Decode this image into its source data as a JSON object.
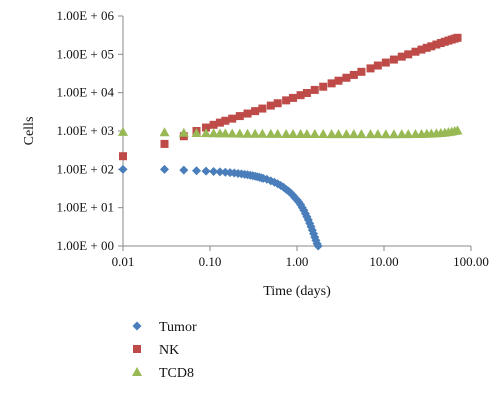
{
  "chart_data": {
    "type": "scatter",
    "x_scale": "log",
    "y_scale": "log",
    "xlabel": "Time (days)",
    "ylabel": "Cells",
    "xlim": [
      0.01,
      100
    ],
    "ylim": [
      1,
      1000000
    ],
    "x_ticks": [
      0.01,
      0.1,
      1,
      10,
      100
    ],
    "x_tick_labels": [
      "0.01",
      "0.10",
      "1.00",
      "10.00",
      "100.00"
    ],
    "y_ticks": [
      1,
      10,
      100,
      1000,
      10000,
      100000,
      1000000
    ],
    "y_tick_labels": [
      "1.00E + 00",
      "1.00E + 01",
      "1.00E + 02",
      "1.00E + 03",
      "1.00E + 04",
      "1.00E + 05",
      "1.00E + 06"
    ],
    "grid": false,
    "legend_position": "bottom",
    "series": [
      {
        "name": "Tumor",
        "marker": "diamond",
        "color": "#4a7ebb",
        "points": [
          [
            0.01,
            100
          ],
          [
            0.03,
            100
          ],
          [
            0.05,
            95
          ],
          [
            0.07,
            92
          ],
          [
            0.09,
            90
          ],
          [
            0.11,
            88
          ],
          [
            0.13,
            86
          ],
          [
            0.15,
            84
          ],
          [
            0.17,
            82
          ],
          [
            0.19,
            80
          ],
          [
            0.21,
            78
          ],
          [
            0.23,
            76
          ],
          [
            0.25,
            74
          ],
          [
            0.27,
            72
          ],
          [
            0.29,
            70
          ],
          [
            0.31,
            68
          ],
          [
            0.33,
            66
          ],
          [
            0.35,
            64
          ],
          [
            0.37,
            62
          ],
          [
            0.39,
            60
          ],
          [
            0.41,
            58
          ],
          [
            0.45,
            55
          ],
          [
            0.5,
            50
          ],
          [
            0.55,
            46
          ],
          [
            0.6,
            42
          ],
          [
            0.65,
            38
          ],
          [
            0.7,
            34
          ],
          [
            0.75,
            30
          ],
          [
            0.8,
            27
          ],
          [
            0.85,
            24
          ],
          [
            0.9,
            21
          ],
          [
            0.95,
            18
          ],
          [
            1.0,
            16
          ],
          [
            1.05,
            14
          ],
          [
            1.1,
            12
          ],
          [
            1.15,
            10
          ],
          [
            1.2,
            8.5
          ],
          [
            1.25,
            7
          ],
          [
            1.3,
            5.8
          ],
          [
            1.35,
            4.8
          ],
          [
            1.4,
            3.9
          ],
          [
            1.45,
            3.2
          ],
          [
            1.5,
            2.6
          ],
          [
            1.55,
            2.1
          ],
          [
            1.6,
            1.7
          ],
          [
            1.65,
            1.4
          ],
          [
            1.7,
            1.15
          ],
          [
            1.75,
            1.0
          ]
        ]
      },
      {
        "name": "NK",
        "marker": "square",
        "color": "#be4b48",
        "points": [
          [
            0.01,
            220
          ],
          [
            0.03,
            460
          ],
          [
            0.05,
            730
          ],
          [
            0.07,
            1000
          ],
          [
            0.09,
            1230
          ],
          [
            0.11,
            1450
          ],
          [
            0.13,
            1650
          ],
          [
            0.15,
            1850
          ],
          [
            0.18,
            2100
          ],
          [
            0.22,
            2450
          ],
          [
            0.27,
            2850
          ],
          [
            0.33,
            3300
          ],
          [
            0.4,
            3850
          ],
          [
            0.5,
            4600
          ],
          [
            0.6,
            5300
          ],
          [
            0.75,
            6300
          ],
          [
            0.9,
            7300
          ],
          [
            1.1,
            8600
          ],
          [
            1.3,
            9800
          ],
          [
            1.6,
            11800
          ],
          [
            2.0,
            14300
          ],
          [
            2.5,
            17500
          ],
          [
            3.0,
            20500
          ],
          [
            3.7,
            24500
          ],
          [
            4.5,
            29000
          ],
          [
            5.5,
            35000
          ],
          [
            7.0,
            43000
          ],
          [
            8.5,
            51000
          ],
          [
            10.5,
            61000
          ],
          [
            13,
            73000
          ],
          [
            16,
            87000
          ],
          [
            19,
            100000
          ],
          [
            23,
            117000
          ],
          [
            27,
            133000
          ],
          [
            31,
            148000
          ],
          [
            35,
            162000
          ],
          [
            40,
            180000
          ],
          [
            45,
            197000
          ],
          [
            50,
            213000
          ],
          [
            55,
            228000
          ],
          [
            60,
            243000
          ],
          [
            65,
            257000
          ],
          [
            70,
            270000
          ]
        ]
      },
      {
        "name": "TCD8",
        "marker": "triangle",
        "color": "#98b954",
        "points": [
          [
            0.01,
            950
          ],
          [
            0.03,
            930
          ],
          [
            0.05,
            900
          ],
          [
            0.07,
            890
          ],
          [
            0.09,
            880
          ],
          [
            0.11,
            875
          ],
          [
            0.13,
            870
          ],
          [
            0.15,
            865
          ],
          [
            0.18,
            860
          ],
          [
            0.22,
            855
          ],
          [
            0.27,
            850
          ],
          [
            0.33,
            848
          ],
          [
            0.4,
            845
          ],
          [
            0.5,
            842
          ],
          [
            0.6,
            840
          ],
          [
            0.75,
            838
          ],
          [
            0.9,
            836
          ],
          [
            1.1,
            835
          ],
          [
            1.3,
            834
          ],
          [
            1.6,
            833
          ],
          [
            2.0,
            832
          ],
          [
            2.5,
            831
          ],
          [
            3.0,
            830
          ],
          [
            3.7,
            829
          ],
          [
            4.5,
            828
          ],
          [
            5.5,
            827
          ],
          [
            7.0,
            826
          ],
          [
            8.5,
            826
          ],
          [
            10.5,
            825
          ],
          [
            13,
            825
          ],
          [
            16,
            826
          ],
          [
            19,
            828
          ],
          [
            23,
            832
          ],
          [
            27,
            838
          ],
          [
            31,
            846
          ],
          [
            35,
            856
          ],
          [
            40,
            870
          ],
          [
            45,
            888
          ],
          [
            50,
            910
          ],
          [
            55,
            935
          ],
          [
            60,
            965
          ],
          [
            65,
            1000
          ],
          [
            70,
            1040
          ]
        ]
      }
    ]
  }
}
